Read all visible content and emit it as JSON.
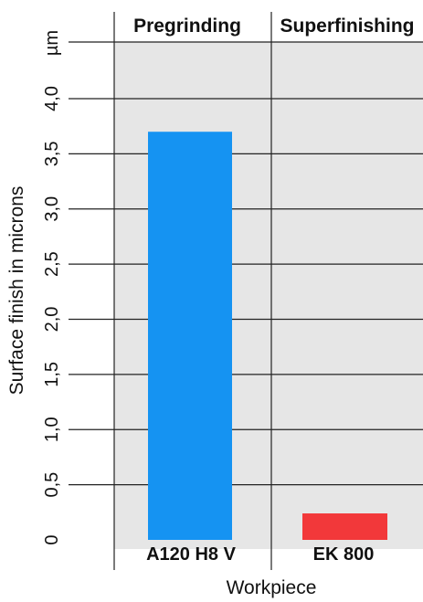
{
  "chart_data": {
    "type": "bar",
    "categories": [
      "A120 H8 V",
      "EK 800"
    ],
    "values": [
      3.7,
      0.24
    ],
    "headers": [
      "Pregrinding",
      "Superfinishing"
    ],
    "unit": "µm",
    "ylabel": "Surface finish in microns",
    "xlabel": "Workpiece",
    "yticks": [
      "0",
      "0,5",
      "1,0",
      "1,5",
      "2,0",
      "2,5",
      "3,0",
      "3,5",
      "4,0"
    ],
    "ylim": [
      0,
      4.0
    ],
    "grid": true,
    "colors": {
      "plot_background": "#e6e6e6",
      "grid_line": "#222222",
      "bars": [
        "#1593f2",
        "#f2383a"
      ]
    }
  }
}
